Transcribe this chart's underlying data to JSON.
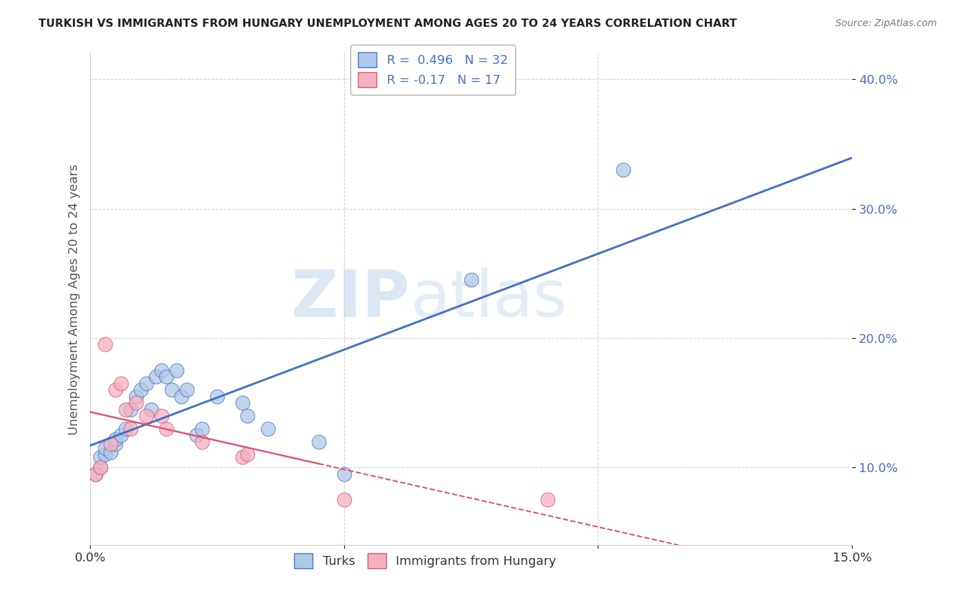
{
  "title": "TURKISH VS IMMIGRANTS FROM HUNGARY UNEMPLOYMENT AMONG AGES 20 TO 24 YEARS CORRELATION CHART",
  "source": "Source: ZipAtlas.com",
  "ylabel": "Unemployment Among Ages 20 to 24 years",
  "xlim": [
    0.0,
    0.15
  ],
  "ylim": [
    0.04,
    0.42
  ],
  "xticks": [
    0.0,
    0.05,
    0.1,
    0.15
  ],
  "xtick_labels": [
    "0.0%",
    "",
    "",
    "15.0%"
  ],
  "ytick_labels": [
    "10.0%",
    "20.0%",
    "30.0%",
    "40.0%"
  ],
  "yticks": [
    0.1,
    0.2,
    0.3,
    0.4
  ],
  "turks_R": 0.496,
  "turks_N": 32,
  "hungary_R": -0.17,
  "hungary_N": 17,
  "turks_color": "#adc8e8",
  "turks_line_color": "#4472c4",
  "hungary_color": "#f4b0be",
  "hungary_line_color": "#e05070",
  "turks_scatter": [
    [
      0.001,
      0.095
    ],
    [
      0.002,
      0.1
    ],
    [
      0.002,
      0.108
    ],
    [
      0.003,
      0.11
    ],
    [
      0.003,
      0.115
    ],
    [
      0.004,
      0.112
    ],
    [
      0.005,
      0.118
    ],
    [
      0.005,
      0.122
    ],
    [
      0.006,
      0.125
    ],
    [
      0.007,
      0.13
    ],
    [
      0.008,
      0.145
    ],
    [
      0.009,
      0.155
    ],
    [
      0.01,
      0.16
    ],
    [
      0.011,
      0.165
    ],
    [
      0.012,
      0.145
    ],
    [
      0.013,
      0.17
    ],
    [
      0.014,
      0.175
    ],
    [
      0.015,
      0.17
    ],
    [
      0.016,
      0.16
    ],
    [
      0.017,
      0.175
    ],
    [
      0.018,
      0.155
    ],
    [
      0.019,
      0.16
    ],
    [
      0.021,
      0.125
    ],
    [
      0.022,
      0.13
    ],
    [
      0.025,
      0.155
    ],
    [
      0.03,
      0.15
    ],
    [
      0.031,
      0.14
    ],
    [
      0.035,
      0.13
    ],
    [
      0.045,
      0.12
    ],
    [
      0.05,
      0.095
    ],
    [
      0.075,
      0.245
    ],
    [
      0.105,
      0.33
    ]
  ],
  "hungary_scatter": [
    [
      0.001,
      0.095
    ],
    [
      0.002,
      0.1
    ],
    [
      0.003,
      0.195
    ],
    [
      0.004,
      0.118
    ],
    [
      0.005,
      0.16
    ],
    [
      0.006,
      0.165
    ],
    [
      0.007,
      0.145
    ],
    [
      0.008,
      0.13
    ],
    [
      0.009,
      0.15
    ],
    [
      0.011,
      0.14
    ],
    [
      0.014,
      0.14
    ],
    [
      0.015,
      0.13
    ],
    [
      0.022,
      0.12
    ],
    [
      0.03,
      0.108
    ],
    [
      0.031,
      0.11
    ],
    [
      0.05,
      0.075
    ],
    [
      0.09,
      0.075
    ]
  ],
  "watermark_zip": "ZIP",
  "watermark_atlas": "atlas",
  "background_color": "#ffffff",
  "grid_color": "#d0d0d0"
}
